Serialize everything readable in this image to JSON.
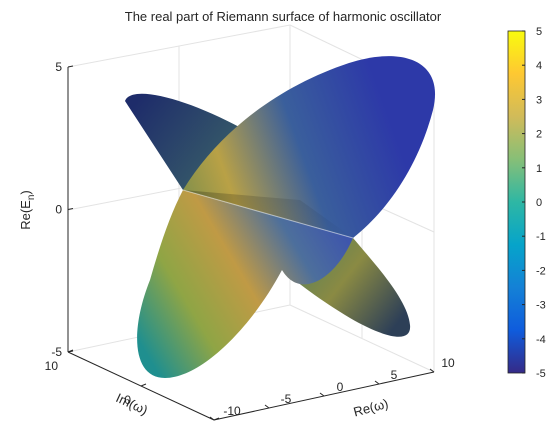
{
  "chart_data": {
    "type": "surface3d",
    "title": "The real part of Riemann surface of harmonic oscillator",
    "axes": {
      "x": {
        "label": "Re(ω)",
        "range": [
          -10,
          10
        ],
        "ticks": [
          "-10",
          "-5",
          "0",
          "5",
          "10"
        ]
      },
      "y": {
        "label": "Im(ω)",
        "range": [
          -10,
          10
        ],
        "ticks": [
          "10",
          "0",
          "-10"
        ]
      },
      "z": {
        "label": "Re(E_n)",
        "range": [
          -5,
          5
        ],
        "ticks": [
          "5",
          "0",
          "-5"
        ]
      }
    },
    "grid": true,
    "colormap": "parula",
    "colorbar": {
      "range": [
        -5,
        5
      ],
      "ticks": [
        "5",
        "4",
        "3",
        "2",
        "1",
        "0",
        "-1",
        "-2",
        "-3",
        "-4",
        "-5"
      ],
      "colors": [
        "#352a87",
        "#0f5cdd",
        "#1481d6",
        "#06a4ca",
        "#2eb7a4",
        "#87bf77",
        "#d1bb59",
        "#fec832",
        "#f9fb0e"
      ]
    },
    "surfaces": [
      {
        "name": "",
        "formula": "Re(E) = +0.5 * Re(ω)",
        "domain": "disk |ω| ≤ 10"
      },
      {
        "name": "",
        "formula": "Re(E) = -0.5 * Re(ω)",
        "domain": "disk |ω| ≤ 10"
      }
    ]
  }
}
